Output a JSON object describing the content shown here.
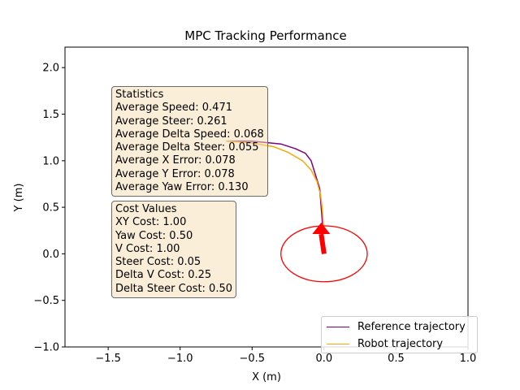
{
  "chart_data": {
    "type": "line",
    "title": "MPC Tracking Performance",
    "xlabel": "X (m)",
    "ylabel": "Y (m)",
    "xlim": [
      -1.8,
      1.0
    ],
    "ylim": [
      -1.0,
      2.22
    ],
    "xticks": [
      "−1.5",
      "−1.0",
      "−0.5",
      "0.0",
      "0.5",
      "1.0"
    ],
    "xtick_values": [
      -1.5,
      -1.0,
      -0.5,
      0.0,
      0.5,
      1.0
    ],
    "yticks": [
      "−1.0",
      "−0.5",
      "0.0",
      "0.5",
      "1.0",
      "1.5",
      "2.0"
    ],
    "ytick_values": [
      -1.0,
      -0.5,
      0.0,
      0.5,
      1.0,
      1.5,
      2.0
    ],
    "series": [
      {
        "name": "Reference trajectory",
        "color": "#800080",
        "x": [
          -0.68,
          -0.5,
          -0.3,
          -0.2,
          -0.13,
          -0.09,
          -0.06,
          -0.03,
          -0.02,
          -0.01,
          0.0
        ],
        "y": [
          1.21,
          1.21,
          1.18,
          1.13,
          1.08,
          1.0,
          0.85,
          0.7,
          0.5,
          0.3,
          0.25
        ]
      },
      {
        "name": "Robot trajectory",
        "color": "#ffa500",
        "x": [
          -0.68,
          -0.5,
          -0.35,
          -0.25,
          -0.15,
          -0.09,
          -0.05,
          -0.025,
          -0.012,
          -0.005,
          0.0
        ],
        "y": [
          1.21,
          1.19,
          1.15,
          1.09,
          1.0,
          0.9,
          0.78,
          0.64,
          0.48,
          0.32,
          0.25
        ]
      }
    ],
    "robot": {
      "center": [
        0.0,
        0.0
      ],
      "radius": 0.3,
      "heading_arrow": {
        "from": [
          0.0,
          0.0
        ],
        "to": [
          -0.02,
          0.3
        ]
      },
      "color": "#ff0000"
    },
    "legend_position": "lower right",
    "grid": false
  },
  "statistics": {
    "header": "Statistics",
    "average_speed": "Average Speed: 0.471",
    "average_steer": "Average Steer: 0.261",
    "average_delta_speed": "Average Delta Speed: 0.068",
    "average_delta_steer": "Average Delta Steer: 0.055",
    "average_x_error": "Average X Error: 0.078",
    "average_y_error": "Average Y Error: 0.078",
    "average_yaw_error": "Average Yaw Error: 0.130"
  },
  "cost_values": {
    "header": "Cost Values",
    "xy_cost": "XY Cost: 1.00",
    "yaw_cost": "Yaw Cost: 0.50",
    "v_cost": "V Cost: 1.00",
    "steer_cost": "Steer Cost: 0.05",
    "delta_v_cost": "Delta V Cost: 0.25",
    "delta_steer_cost": "Delta Steer Cost: 0.50"
  },
  "legend": {
    "reference_label": "Reference trajectory",
    "robot_label": "Robot trajectory"
  }
}
